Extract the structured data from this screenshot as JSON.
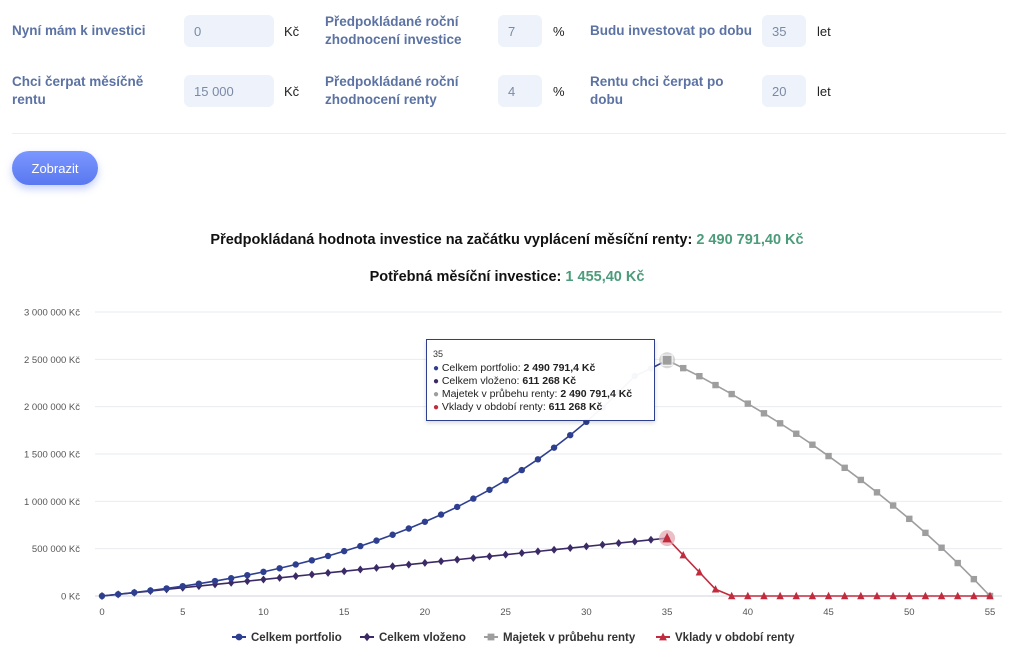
{
  "form": {
    "f1": {
      "label": "Nyní mám k investici",
      "value": "0",
      "unit": "Kč"
    },
    "f2": {
      "label": "Předpokládané roční zhodnocení investice",
      "value": "7",
      "unit": "%"
    },
    "f3": {
      "label": "Budu investovat po dobu",
      "value": "35",
      "unit": "let"
    },
    "f4": {
      "label": "Chci čerpat měsíčně rentu",
      "value": "15 000",
      "unit": "Kč"
    },
    "f5": {
      "label": "Předpokládané roční zhodnocení renty",
      "value": "4",
      "unit": "%"
    },
    "f6": {
      "label": "Rentu chci čerpat po dobu",
      "value": "20",
      "unit": "let"
    }
  },
  "button": {
    "label": "Zobrazit"
  },
  "result": {
    "line1_label": "Předpokládaná hodnota investice na začátku vyplácení měsíční renty:",
    "line1_value": "2 490 791,40 Kč",
    "line2_label": "Potřebná měsíční investice:",
    "line2_value": "1 455,40 Kč"
  },
  "tooltip": {
    "title": "35",
    "rows": [
      {
        "label": "Celkem portfolio",
        "value": "2 490 791,4 Kč",
        "color": "#2e3f8f"
      },
      {
        "label": "Celkem vloženo",
        "value": "611 268 Kč",
        "color": "#3b2a66"
      },
      {
        "label": "Majetek v průbehu renty",
        "value": "2 490 791,4 Kč",
        "color": "#9e9e9e"
      },
      {
        "label": "Vklady v období renty",
        "value": "611 268 Kč",
        "color": "#c22a3e"
      }
    ]
  },
  "chart_data": {
    "type": "line",
    "title": "",
    "xlabel": "",
    "ylabel": "",
    "xlim": [
      0,
      55
    ],
    "ylim": [
      0,
      3000000
    ],
    "x_ticks": [
      "0",
      "5",
      "10",
      "15",
      "20",
      "25",
      "30",
      "35",
      "40",
      "45",
      "50",
      "55"
    ],
    "y_ticks": [
      "0 Kč",
      "500 000 Kč",
      "1 000 000 Kč",
      "1 500 000 Kč",
      "2 000 000 Kč",
      "2 500 000 Kč",
      "3 000 000 Kč"
    ],
    "grid": true,
    "legend_position": "bottom",
    "series": [
      {
        "name": "Celkem portfolio",
        "color": "#2e3f8f",
        "marker": "circle",
        "x": [
          0,
          1,
          2,
          3,
          4,
          5,
          6,
          7,
          8,
          9,
          10,
          11,
          12,
          13,
          14,
          15,
          16,
          17,
          18,
          19,
          20,
          21,
          22,
          23,
          24,
          25,
          26,
          27,
          28,
          29,
          30,
          31,
          32,
          33,
          34,
          35
        ],
        "values": [
          0,
          18000,
          37000,
          58000,
          80000,
          104000,
          130000,
          158000,
          188000,
          220000,
          255000,
          293000,
          333000,
          377000,
          423000,
          474000,
          527000,
          585000,
          647000,
          713000,
          784000,
          860000,
          941000,
          1029000,
          1122000,
          1222000,
          1330000,
          1444000,
          1567000,
          1699000,
          1840000,
          1991000,
          2152000,
          2324000,
          2403000,
          2490791
        ]
      },
      {
        "name": "Celkem vloženo",
        "color": "#3b2a66",
        "marker": "diamond",
        "x": [
          0,
          1,
          2,
          3,
          4,
          5,
          6,
          7,
          8,
          9,
          10,
          11,
          12,
          13,
          14,
          15,
          16,
          17,
          18,
          19,
          20,
          21,
          22,
          23,
          24,
          25,
          26,
          27,
          28,
          29,
          30,
          31,
          32,
          33,
          34,
          35
        ],
        "values": [
          0,
          17465,
          34930,
          52395,
          69860,
          87325,
          104790,
          122255,
          139720,
          157185,
          174650,
          192115,
          209580,
          227045,
          244510,
          261975,
          279440,
          296905,
          314370,
          331835,
          349300,
          366765,
          384230,
          401695,
          419160,
          436625,
          454090,
          471555,
          489020,
          506485,
          523950,
          541415,
          558880,
          576345,
          593810,
          611268
        ]
      },
      {
        "name": "Majetek v průbehu renty",
        "color": "#9e9e9e",
        "marker": "square",
        "x": [
          35,
          36,
          37,
          38,
          39,
          40,
          41,
          42,
          43,
          44,
          45,
          46,
          47,
          48,
          49,
          50,
          51,
          52,
          53,
          54,
          55
        ],
        "values": [
          2490791,
          2407000,
          2322000,
          2228000,
          2133000,
          2032000,
          1930000,
          1824000,
          1714000,
          1598000,
          1478000,
          1354000,
          1226000,
          1095000,
          956000,
          815000,
          667000,
          510000,
          348000,
          178000,
          0
        ]
      },
      {
        "name": "Vklady v období renty",
        "color": "#c22a3e",
        "marker": "triangle",
        "x": [
          35,
          36,
          37,
          38,
          39,
          40,
          41,
          42,
          43,
          44,
          45,
          46,
          47,
          48,
          49,
          50,
          51,
          52,
          53,
          54,
          55
        ],
        "values": [
          611268,
          431000,
          251000,
          71000,
          0,
          0,
          0,
          0,
          0,
          0,
          0,
          0,
          0,
          0,
          0,
          0,
          0,
          0,
          0,
          0,
          0
        ]
      }
    ]
  }
}
